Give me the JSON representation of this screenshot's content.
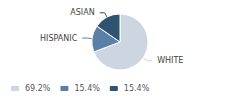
{
  "chart_data": {
    "type": "pie",
    "categories": [
      "WHITE",
      "HISPANIC",
      "ASIAN"
    ],
    "values": [
      69.2,
      15.4,
      15.4
    ],
    "value_labels": [
      "69.2%",
      "15.4%",
      "15.4%"
    ],
    "colors": [
      "#cdd5e0",
      "#5b7fa6",
      "#2e5472"
    ],
    "legend": "lower left"
  }
}
